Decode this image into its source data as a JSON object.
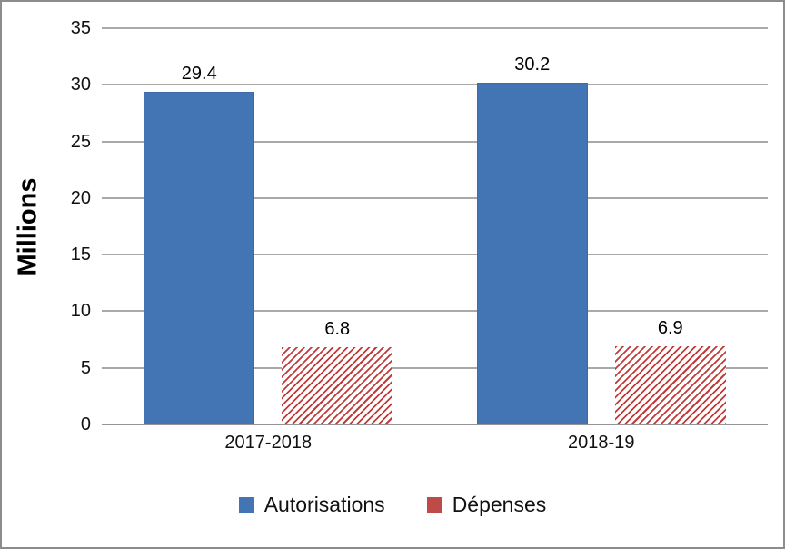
{
  "chart_data": {
    "type": "bar",
    "categories": [
      "2017-2018",
      "2018-19"
    ],
    "series": [
      {
        "name": "Autorisations",
        "pattern": "solid",
        "color": "#4374B3",
        "values": [
          29.4,
          30.2
        ]
      },
      {
        "name": "Dépenses",
        "pattern": "diagonal-hatch",
        "color": "#C23B38",
        "values": [
          6.8,
          6.9
        ]
      }
    ],
    "data_labels": {
      "2017-2018": [
        "29.4",
        "6.8"
      ],
      "2018-19": [
        "30.2",
        "6.9"
      ]
    },
    "title": "",
    "xlabel": "",
    "ylabel": "Millions",
    "ylim": [
      0,
      35
    ],
    "yticks": [
      0,
      5,
      10,
      15,
      20,
      25,
      30,
      35
    ],
    "grid": true,
    "gridline_color": "#A9A9A9",
    "legend_position": "bottom"
  }
}
